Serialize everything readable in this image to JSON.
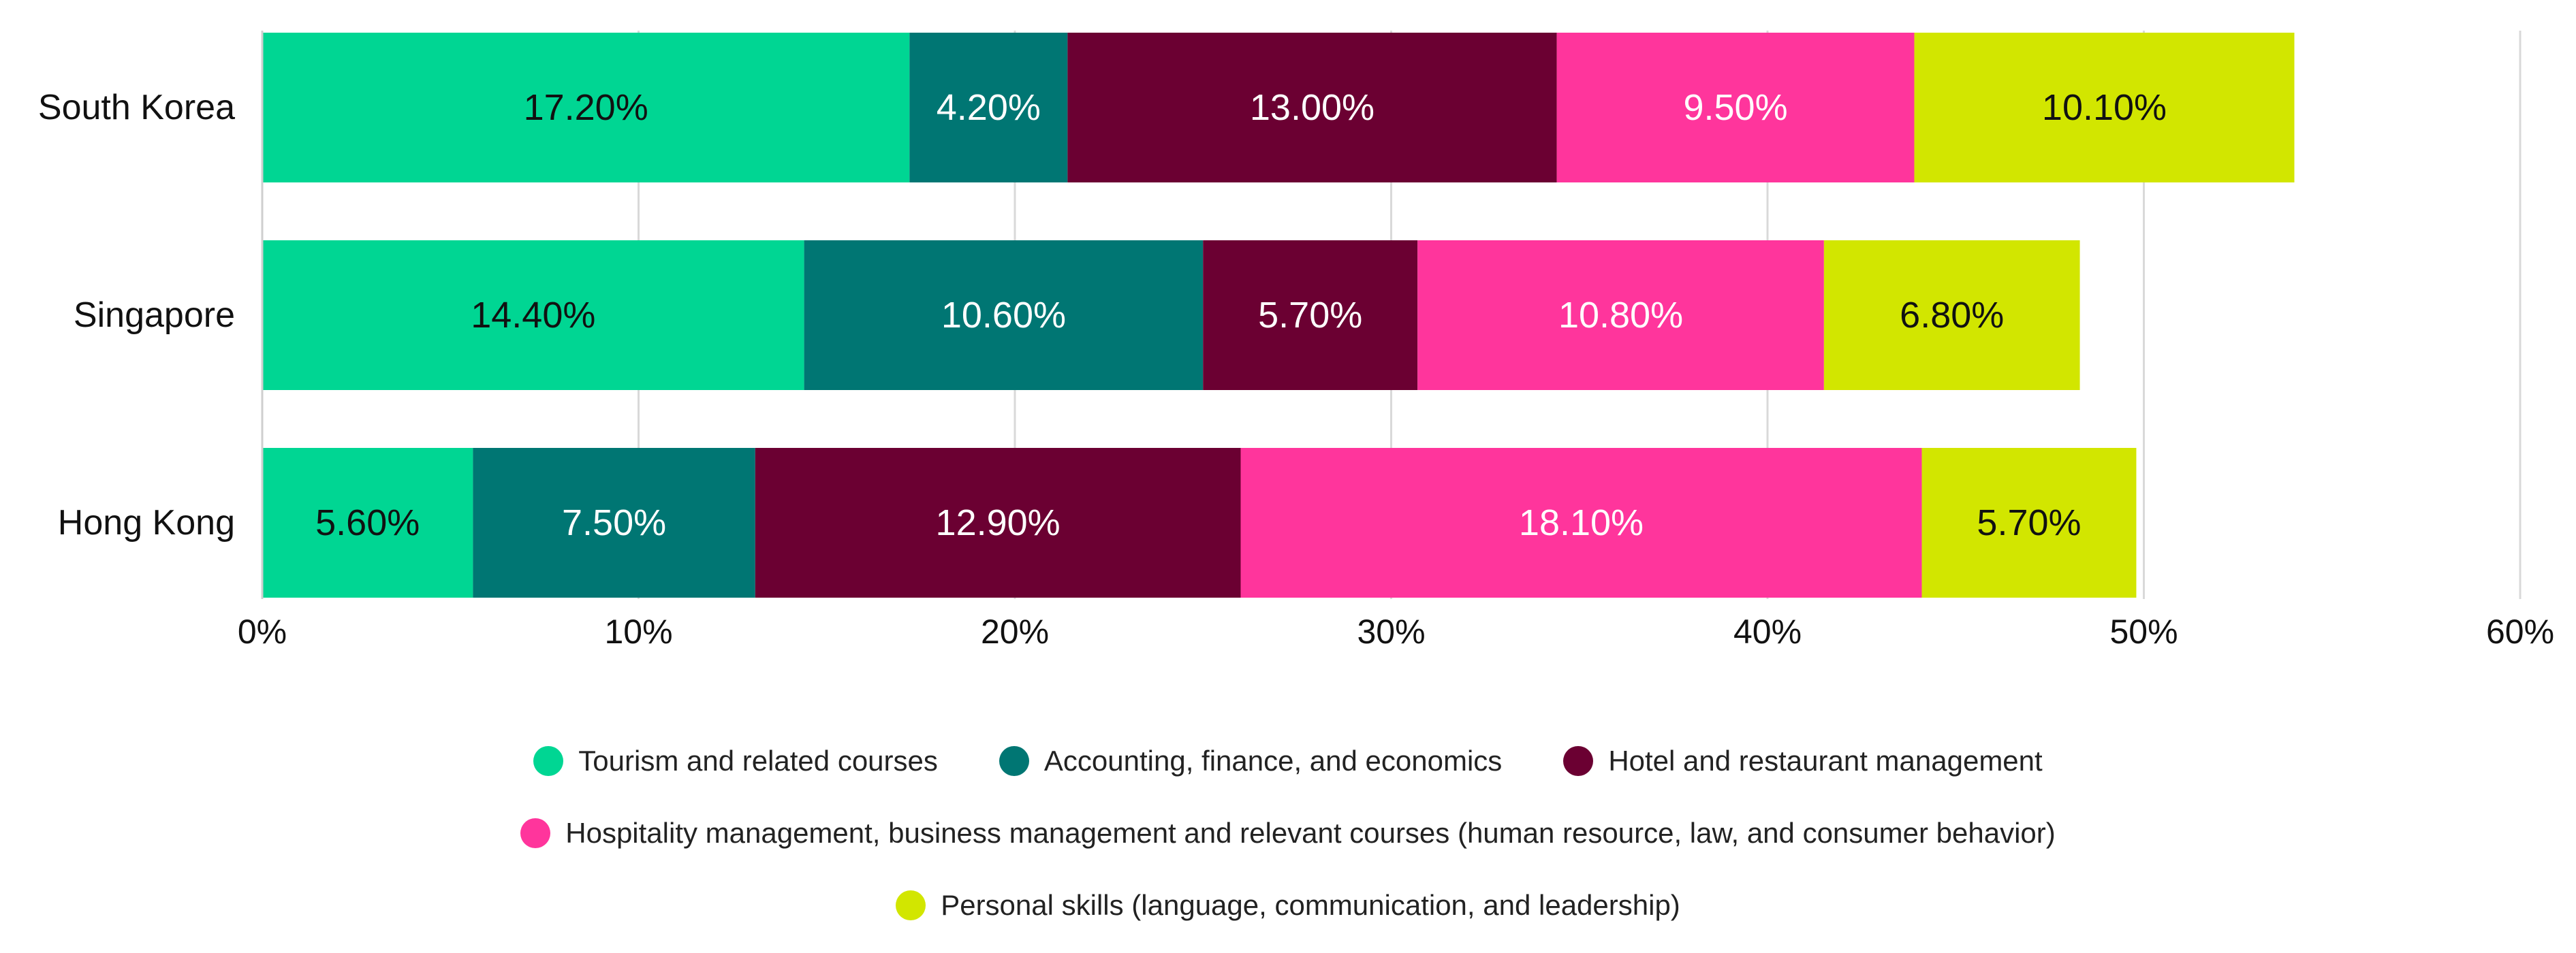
{
  "chart_data": {
    "type": "bar",
    "orientation": "horizontal",
    "stacked": true,
    "categories": [
      "South Korea",
      "Singapore",
      "Hong Kong"
    ],
    "series": [
      {
        "name": "Tourism and related courses",
        "color": "#00D693",
        "label_color": "#111111",
        "values": [
          17.2,
          14.4,
          5.6
        ],
        "labels": [
          "17.20%",
          "14.40%",
          "5.60%"
        ]
      },
      {
        "name": "Accounting, finance, and economics",
        "color": "#007673",
        "label_color": "#ffffff",
        "values": [
          4.2,
          10.6,
          7.5
        ],
        "labels": [
          "4.20%",
          "10.60%",
          "7.50%"
        ]
      },
      {
        "name": "Hotel and restaurant management",
        "color": "#6B0032",
        "label_color": "#ffffff",
        "values": [
          13.0,
          5.7,
          12.9
        ],
        "labels": [
          "13.00%",
          "5.70%",
          "12.90%"
        ]
      },
      {
        "name": "Hospitality management, business management and relevant courses (human resource, law, and consumer behavior)",
        "color": "#FF359C",
        "label_color": "#ffffff",
        "values": [
          9.5,
          10.8,
          18.1
        ],
        "labels": [
          "9.50%",
          "10.80%",
          "18.10%"
        ]
      },
      {
        "name": "Personal skills (language, communication, and leadership)",
        "color": "#D2E600",
        "label_color": "#111111",
        "values": [
          10.1,
          6.8,
          5.7
        ],
        "labels": [
          "10.10%",
          "6.80%",
          "5.70%"
        ]
      }
    ],
    "xlim": [
      0,
      60
    ],
    "xticks": [
      0,
      10,
      20,
      30,
      40,
      50,
      60
    ],
    "xtick_labels": [
      "0%",
      "10%",
      "20%",
      "30%",
      "40%",
      "50%",
      "60%"
    ],
    "grid": true,
    "legend_position": "bottom",
    "title": "",
    "xlabel": "",
    "ylabel": ""
  }
}
